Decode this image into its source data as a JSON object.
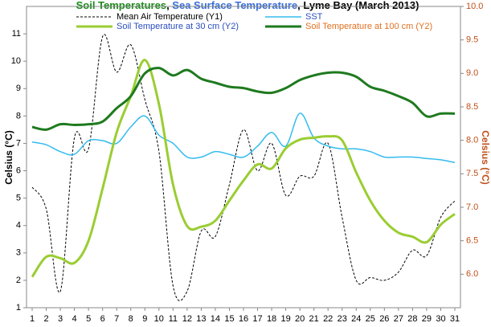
{
  "chart_data": {
    "type": "line",
    "title_parts": [
      {
        "text": "Soil Temperatures",
        "color": "#1a8a1a"
      },
      {
        "text": ", ",
        "color": "#000000"
      },
      {
        "text": "Sea Surface Temperature",
        "color": "#3a6fd8"
      },
      {
        "text": ", Lyme Bay (March 2013)",
        "color": "#000000"
      }
    ],
    "ylabel": "Celsius (°C)",
    "y2label": "Celsius (°C)",
    "y2color": "#c0501a",
    "grid": false,
    "x": [
      1,
      2,
      3,
      4,
      5,
      6,
      7,
      8,
      9,
      10,
      11,
      12,
      13,
      14,
      15,
      16,
      17,
      18,
      19,
      20,
      21,
      22,
      23,
      24,
      25,
      26,
      27,
      28,
      29,
      30,
      31
    ],
    "xlim": [
      0.6,
      31.4
    ],
    "ylim": [
      1,
      12
    ],
    "yticks": [
      1,
      2,
      3,
      4,
      5,
      6,
      7,
      8,
      9,
      10,
      11
    ],
    "y2lim": [
      5.5,
      10.0
    ],
    "y2ticks": [
      {
        "value": 6,
        "label": "6.0"
      },
      6.5,
      {
        "value": 7,
        "label": "7.0"
      },
      7.5,
      {
        "value": 8,
        "label": "8.0"
      },
      8.5,
      {
        "value": 9,
        "label": "9.0"
      },
      9.5,
      {
        "value": 10,
        "label": "10.0"
      }
    ],
    "series": [
      {
        "name": "Mean Air Temperature (Y1)",
        "color": "#000000",
        "label_color": "#000000",
        "dash": true,
        "width": 1,
        "values": [
          5.4,
          4.6,
          1.6,
          7.2,
          6.8,
          10.9,
          9.6,
          10.6,
          8.6,
          6.7,
          1.8,
          1.6,
          3.8,
          3.6,
          5.5,
          7.5,
          6.0,
          7.0,
          5.1,
          5.8,
          5.8,
          7.0,
          4.3,
          2.0,
          2.1,
          2.0,
          2.3,
          3.1,
          2.9,
          4.3,
          4.9
        ]
      },
      {
        "name": "SST",
        "color": "#33bbee",
        "label_color": "#2a4fc0",
        "dash": false,
        "width": 1.5,
        "values": [
          7.05,
          6.95,
          6.7,
          6.6,
          7.1,
          7.1,
          7.0,
          7.6,
          8.0,
          7.3,
          7.0,
          6.5,
          6.5,
          6.7,
          6.6,
          6.5,
          6.9,
          7.4,
          6.9,
          8.1,
          7.2,
          6.9,
          6.8,
          6.8,
          6.7,
          6.5,
          6.5,
          6.5,
          6.45,
          6.4,
          6.3
        ]
      },
      {
        "name": "Soil Temperature at 30 cm (Y2)",
        "color": "#9acd32",
        "label_color": "#2a4fc0",
        "dash": false,
        "width": 3,
        "axis": "y2",
        "values": [
          5.96,
          6.26,
          6.24,
          6.17,
          6.5,
          7.28,
          8.12,
          8.66,
          9.2,
          8.54,
          7.34,
          6.72,
          6.71,
          6.8,
          7.1,
          7.4,
          7.64,
          7.58,
          7.88,
          8.01,
          8.04,
          8.06,
          8.0,
          7.52,
          7.1,
          6.8,
          6.62,
          6.56,
          6.48,
          6.74,
          6.9
        ]
      },
      {
        "name": "Soil Temperature at 100 cm (Y2)",
        "color": "#1e7a1e",
        "label_color": "#e07020",
        "dash": false,
        "width": 3,
        "axis": "y2",
        "values": [
          8.2,
          8.16,
          8.24,
          8.23,
          8.24,
          8.28,
          8.48,
          8.66,
          9.0,
          9.08,
          8.97,
          9.05,
          8.92,
          8.86,
          8.8,
          8.78,
          8.73,
          8.71,
          8.78,
          8.9,
          8.97,
          9.01,
          9.01,
          8.95,
          8.8,
          8.74,
          8.66,
          8.56,
          8.36,
          8.4,
          8.4
        ]
      }
    ]
  }
}
